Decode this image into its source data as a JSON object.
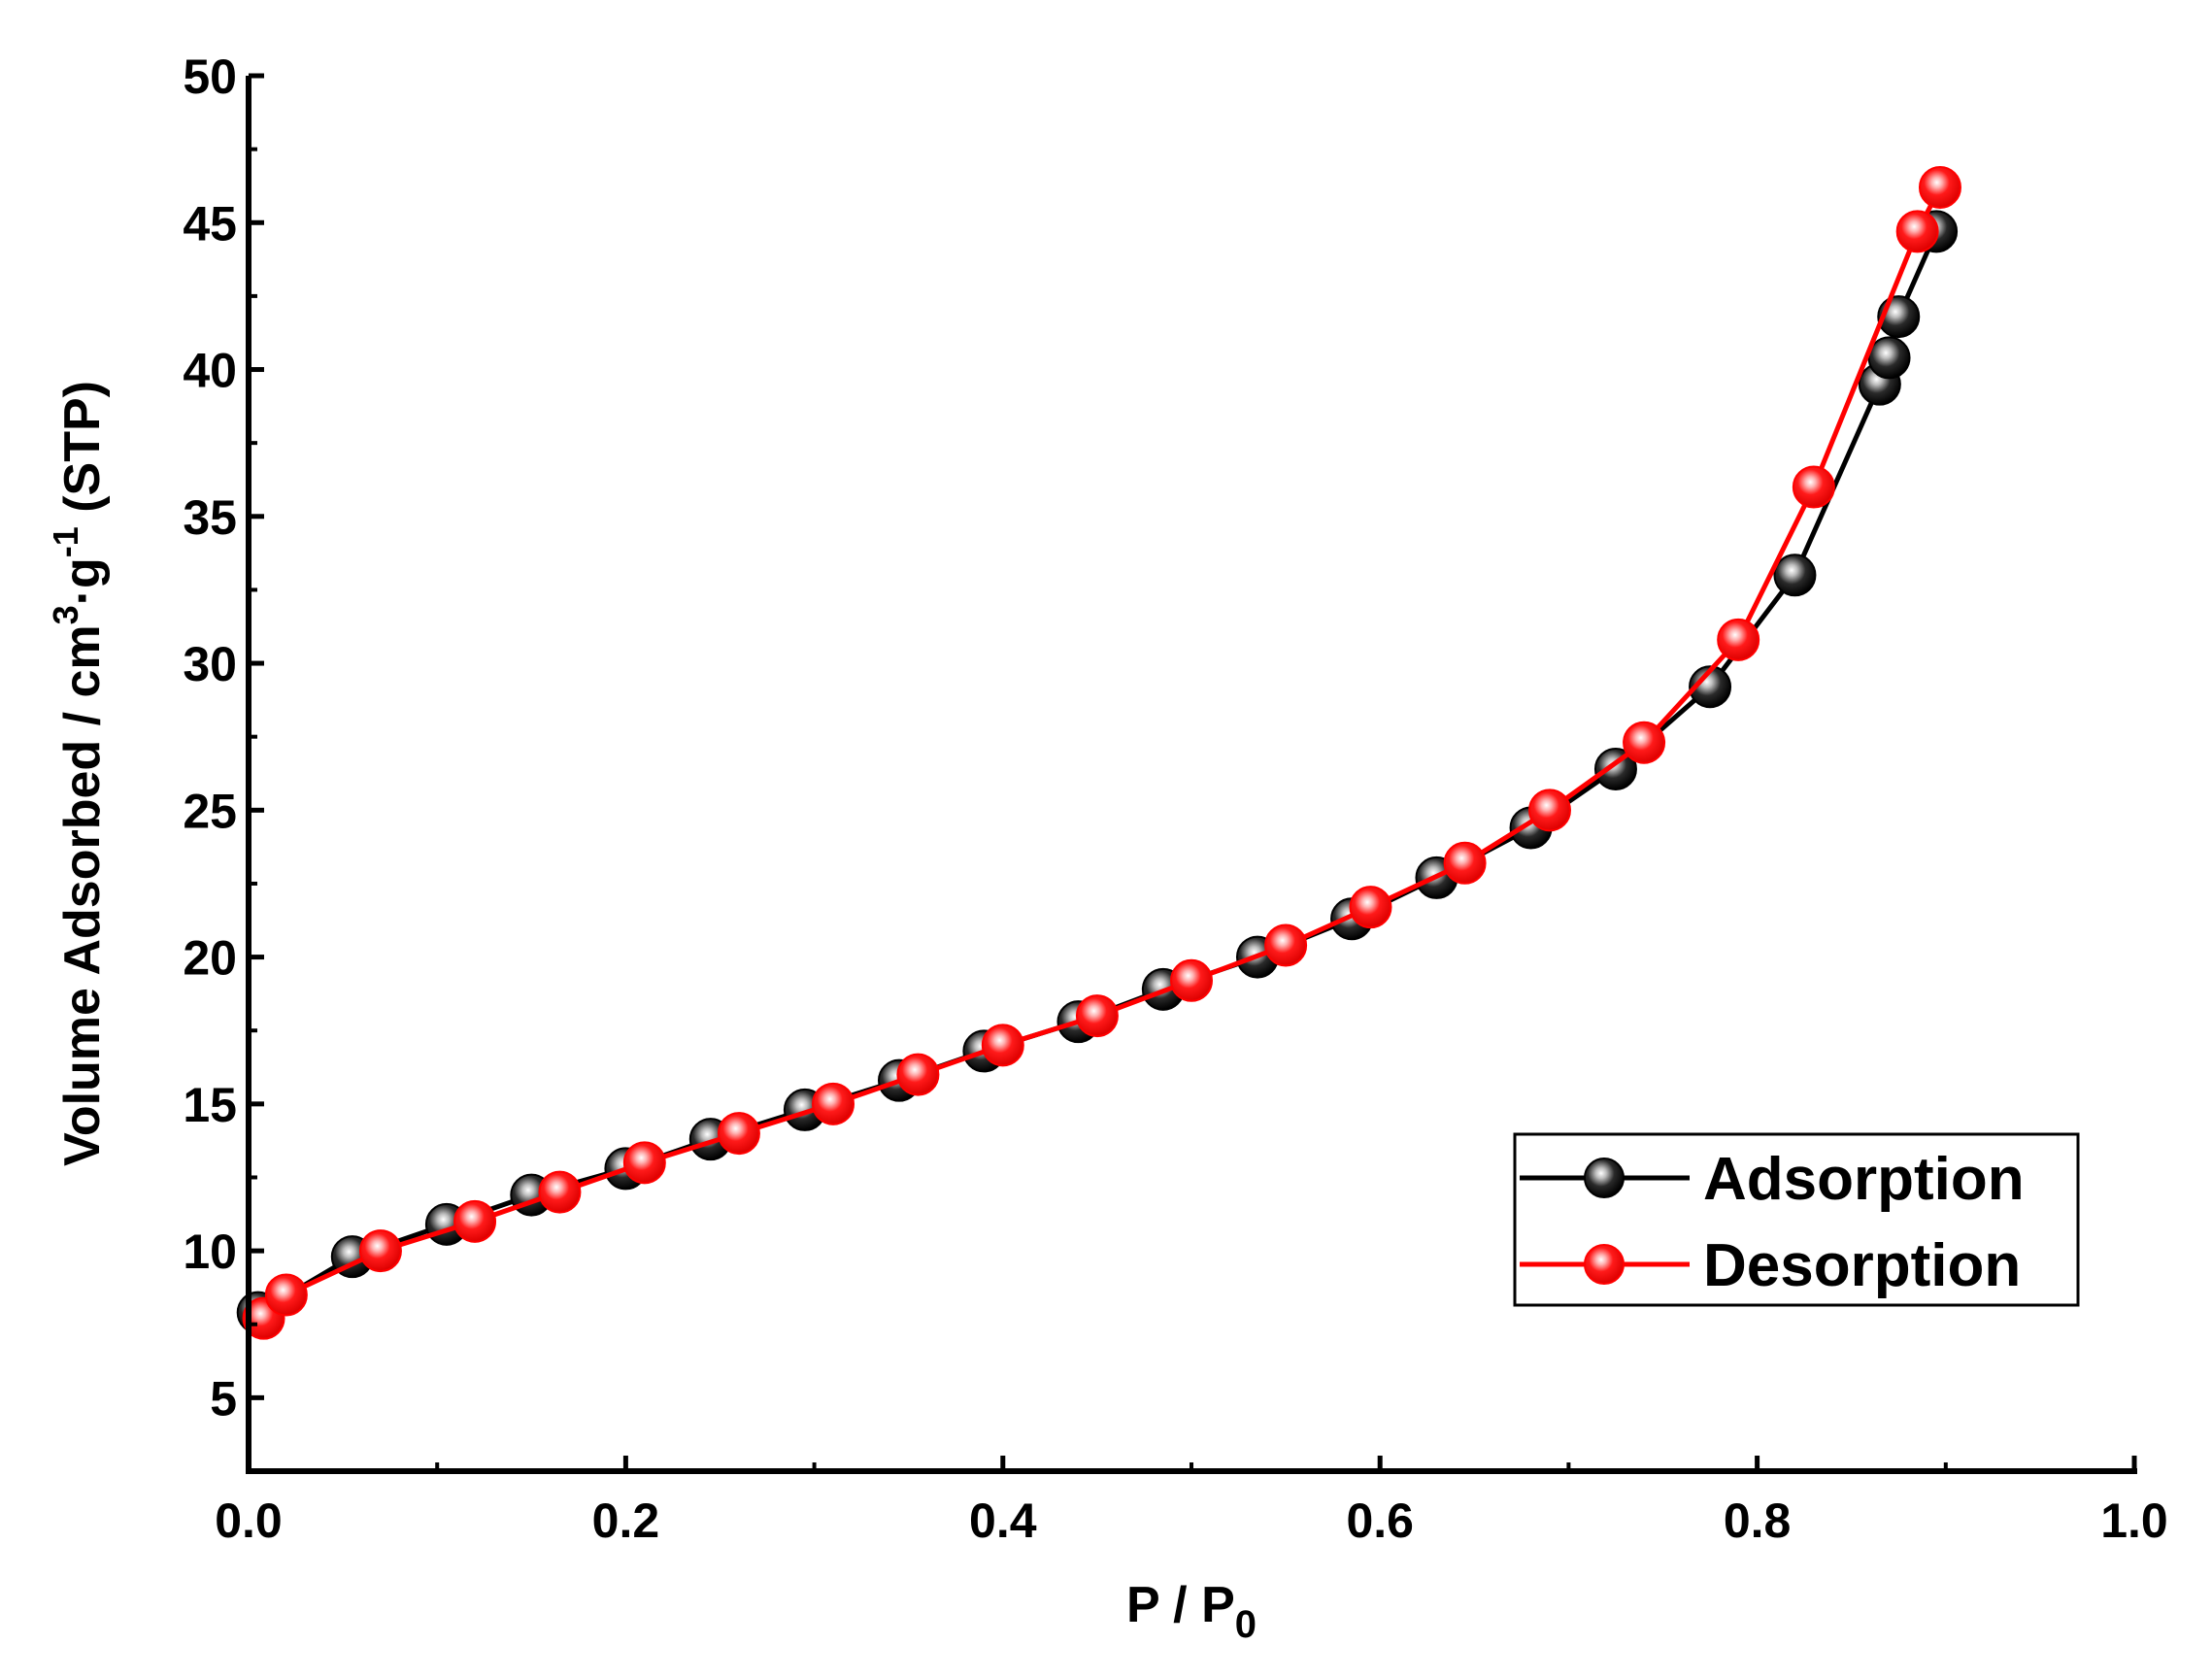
{
  "chart_data": {
    "type": "line",
    "title": "",
    "xlabel": {
      "base": "P / P",
      "sub": "0"
    },
    "ylabel": {
      "prefix": "Volume Adsorbed / cm",
      "sup1": "3",
      "mid": "·g",
      "sup2": "-1",
      "suffix": " (STP)"
    },
    "xlim": [
      0.0,
      1.0
    ],
    "ylim": [
      2.5,
      50
    ],
    "xticks": [
      0.0,
      0.2,
      0.4,
      0.6,
      0.8,
      1.0
    ],
    "xtick_labels": [
      "0.0",
      "0.2",
      "0.4",
      "0.6",
      "0.8",
      "1.0"
    ],
    "yticks": [
      5,
      10,
      15,
      20,
      25,
      30,
      35,
      40,
      45,
      50
    ],
    "ytick_labels": [
      "5",
      "10",
      "15",
      "20",
      "25",
      "30",
      "35",
      "40",
      "45",
      "50"
    ],
    "grid": false,
    "legend_position": "bottom-right",
    "series": [
      {
        "name": "Adsorption",
        "color": "#000000",
        "marker": "sphere",
        "points": [
          [
            0.005,
            7.9
          ],
          [
            0.055,
            9.8
          ],
          [
            0.105,
            10.9
          ],
          [
            0.15,
            11.9
          ],
          [
            0.2,
            12.8
          ],
          [
            0.245,
            13.8
          ],
          [
            0.295,
            14.8
          ],
          [
            0.345,
            15.8
          ],
          [
            0.39,
            16.8
          ],
          [
            0.44,
            17.8
          ],
          [
            0.485,
            18.9
          ],
          [
            0.535,
            20.0
          ],
          [
            0.585,
            21.3
          ],
          [
            0.63,
            22.7
          ],
          [
            0.68,
            24.4
          ],
          [
            0.725,
            26.4
          ],
          [
            0.775,
            29.2
          ],
          [
            0.82,
            33.0
          ],
          [
            0.865,
            39.5
          ],
          [
            0.87,
            40.4
          ],
          [
            0.875,
            41.8
          ],
          [
            0.895,
            44.7
          ]
        ]
      },
      {
        "name": "Desorption",
        "color": "#ff0000",
        "marker": "sphere",
        "points": [
          [
            0.008,
            7.7
          ],
          [
            0.02,
            8.5
          ],
          [
            0.07,
            10.0
          ],
          [
            0.12,
            11.0
          ],
          [
            0.165,
            12.0
          ],
          [
            0.21,
            13.0
          ],
          [
            0.26,
            14.0
          ],
          [
            0.31,
            15.0
          ],
          [
            0.355,
            16.0
          ],
          [
            0.4,
            17.0
          ],
          [
            0.45,
            18.0
          ],
          [
            0.5,
            19.2
          ],
          [
            0.55,
            20.4
          ],
          [
            0.595,
            21.7
          ],
          [
            0.645,
            23.2
          ],
          [
            0.69,
            25.0
          ],
          [
            0.74,
            27.3
          ],
          [
            0.79,
            30.8
          ],
          [
            0.83,
            36.0
          ],
          [
            0.885,
            44.7
          ],
          [
            0.897,
            46.2
          ]
        ]
      }
    ]
  }
}
